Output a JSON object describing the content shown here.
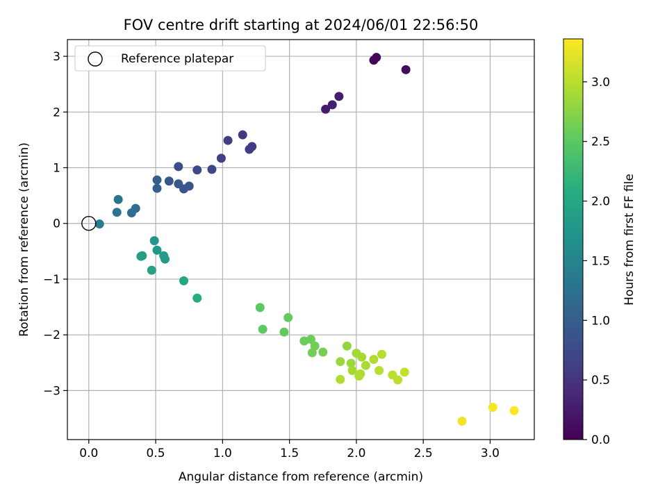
{
  "chart_data": {
    "type": "scatter",
    "title": "FOV centre drift starting at 2024/06/01 22:56:50",
    "xlabel": "Angular distance from reference (arcmin)",
    "ylabel": "Rotation from reference (arcmin)",
    "xlim": [
      -0.16,
      3.33
    ],
    "ylim": [
      -3.88,
      3.3
    ],
    "xticks": [
      0.0,
      0.5,
      1.0,
      1.5,
      2.0,
      2.5,
      3.0
    ],
    "xtick_labels": [
      "0.0",
      "0.5",
      "1.0",
      "1.5",
      "2.0",
      "2.5",
      "3.0"
    ],
    "yticks": [
      -3,
      -2,
      -1,
      0,
      1,
      2,
      3
    ],
    "ytick_labels": [
      "−3",
      "−2",
      "−1",
      "0",
      "1",
      "2",
      "3"
    ],
    "grid": true,
    "legend": {
      "position": "upper-left",
      "entries": [
        "Reference platepar"
      ]
    },
    "reference_point": {
      "x": 0.0,
      "y": 0.0,
      "label": "Reference platepar"
    },
    "colorbar": {
      "label": "Hours from first FF file",
      "colormap": "viridis",
      "range": [
        0.0,
        3.36
      ],
      "ticks": [
        0.0,
        0.5,
        1.0,
        1.5,
        2.0,
        2.5,
        3.0
      ],
      "tick_labels": [
        "0.0",
        "0.5",
        "1.0",
        "1.5",
        "2.0",
        "2.5",
        "3.0"
      ]
    },
    "points": [
      {
        "x": 2.13,
        "y": 2.93,
        "c": 0.05
      },
      {
        "x": 2.15,
        "y": 2.98,
        "c": 0.05
      },
      {
        "x": 2.37,
        "y": 2.76,
        "c": 0.1
      },
      {
        "x": 1.77,
        "y": 2.05,
        "c": 0.25
      },
      {
        "x": 1.82,
        "y": 2.13,
        "c": 0.28
      },
      {
        "x": 1.87,
        "y": 2.28,
        "c": 0.3
      },
      {
        "x": 1.15,
        "y": 1.59,
        "c": 0.55
      },
      {
        "x": 1.22,
        "y": 1.38,
        "c": 0.58
      },
      {
        "x": 1.2,
        "y": 1.33,
        "c": 0.6
      },
      {
        "x": 1.04,
        "y": 1.49,
        "c": 0.62
      },
      {
        "x": 0.99,
        "y": 1.17,
        "c": 0.66
      },
      {
        "x": 0.92,
        "y": 0.97,
        "c": 0.7
      },
      {
        "x": 0.81,
        "y": 0.96,
        "c": 0.75
      },
      {
        "x": 0.67,
        "y": 1.02,
        "c": 0.8
      },
      {
        "x": 0.75,
        "y": 0.67,
        "c": 0.85
      },
      {
        "x": 0.71,
        "y": 0.62,
        "c": 0.88
      },
      {
        "x": 0.67,
        "y": 0.71,
        "c": 0.9
      },
      {
        "x": 0.6,
        "y": 0.76,
        "c": 0.92
      },
      {
        "x": 0.51,
        "y": 0.78,
        "c": 0.98
      },
      {
        "x": 0.51,
        "y": 0.63,
        "c": 1.0
      },
      {
        "x": 0.35,
        "y": 0.27,
        "c": 1.18
      },
      {
        "x": 0.32,
        "y": 0.19,
        "c": 1.22
      },
      {
        "x": 0.22,
        "y": 0.43,
        "c": 1.28
      },
      {
        "x": 0.21,
        "y": 0.2,
        "c": 1.3
      },
      {
        "x": 0.08,
        "y": -0.01,
        "c": 1.38
      },
      {
        "x": 0.49,
        "y": -0.31,
        "c": 1.75
      },
      {
        "x": 0.51,
        "y": -0.48,
        "c": 1.78
      },
      {
        "x": 0.56,
        "y": -0.58,
        "c": 1.82
      },
      {
        "x": 0.57,
        "y": -0.64,
        "c": 1.82
      },
      {
        "x": 0.39,
        "y": -0.59,
        "c": 1.86
      },
      {
        "x": 0.4,
        "y": -0.58,
        "c": 1.88
      },
      {
        "x": 0.47,
        "y": -0.84,
        "c": 1.92
      },
      {
        "x": 0.71,
        "y": -1.03,
        "c": 2.0
      },
      {
        "x": 0.81,
        "y": -1.34,
        "c": 2.05
      },
      {
        "x": 1.28,
        "y": -1.51,
        "c": 2.5
      },
      {
        "x": 1.3,
        "y": -1.9,
        "c": 2.52
      },
      {
        "x": 1.49,
        "y": -1.69,
        "c": 2.55
      },
      {
        "x": 1.46,
        "y": -1.95,
        "c": 2.55
      },
      {
        "x": 1.61,
        "y": -2.11,
        "c": 2.58
      },
      {
        "x": 1.66,
        "y": -2.08,
        "c": 2.6
      },
      {
        "x": 1.69,
        "y": -2.2,
        "c": 2.62
      },
      {
        "x": 1.67,
        "y": -2.32,
        "c": 2.62
      },
      {
        "x": 1.75,
        "y": -2.31,
        "c": 2.65
      },
      {
        "x": 1.93,
        "y": -2.2,
        "c": 2.8
      },
      {
        "x": 1.88,
        "y": -2.48,
        "c": 2.85
      },
      {
        "x": 1.96,
        "y": -2.51,
        "c": 2.85
      },
      {
        "x": 2.0,
        "y": -2.33,
        "c": 2.88
      },
      {
        "x": 2.04,
        "y": -2.4,
        "c": 2.9
      },
      {
        "x": 1.97,
        "y": -2.64,
        "c": 2.9
      },
      {
        "x": 2.07,
        "y": -2.55,
        "c": 2.92
      },
      {
        "x": 1.88,
        "y": -2.8,
        "c": 2.95
      },
      {
        "x": 2.03,
        "y": -2.7,
        "c": 2.95
      },
      {
        "x": 2.02,
        "y": -2.74,
        "c": 2.95
      },
      {
        "x": 2.13,
        "y": -2.44,
        "c": 2.95
      },
      {
        "x": 2.19,
        "y": -2.35,
        "c": 2.98
      },
      {
        "x": 2.17,
        "y": -2.64,
        "c": 3.0
      },
      {
        "x": 2.27,
        "y": -2.72,
        "c": 3.0
      },
      {
        "x": 2.31,
        "y": -2.81,
        "c": 3.02
      },
      {
        "x": 2.36,
        "y": -2.67,
        "c": 3.05
      },
      {
        "x": 2.79,
        "y": -3.55,
        "c": 3.3
      },
      {
        "x": 3.02,
        "y": -3.3,
        "c": 3.32
      },
      {
        "x": 3.18,
        "y": -3.36,
        "c": 3.36
      }
    ]
  }
}
